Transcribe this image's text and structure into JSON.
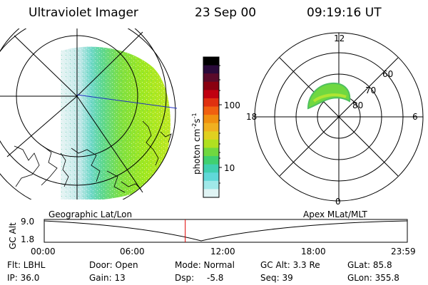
{
  "header": {
    "title": "Ultraviolet Imager",
    "date": "23 Sep 00",
    "time": "09:19:16 UT"
  },
  "colorbar": {
    "label": "photon cm",
    "label_exp1": "-2",
    "label_s": "s",
    "label_exp2": "-1",
    "ticks": [
      "100",
      "10"
    ],
    "colors": [
      "#000000",
      "#2a0a3a",
      "#5a0a2a",
      "#8a0010",
      "#c00010",
      "#e03010",
      "#f06010",
      "#f09010",
      "#f0b020",
      "#e0d020",
      "#b0e020",
      "#70d840",
      "#40d070",
      "#40d0b0",
      "#60d8d8",
      "#a0e8e8",
      "#e0f4f4"
    ]
  },
  "polar": {
    "labels": [
      "12",
      "18",
      "6",
      "0",
      "60",
      "70",
      "80"
    ]
  },
  "left_panel": {
    "caption": "Geographic Lat/Lon"
  },
  "right_panel": {
    "caption": "Apex MLat/MLT"
  },
  "altitude_plot": {
    "ylabel": "GC Alt",
    "y_ticks": [
      "9.0",
      "1.8"
    ],
    "x_ticks": [
      "00:00",
      "06:00",
      "12:00",
      "18:00",
      "23:59"
    ],
    "current_time_hours": 9.32
  },
  "info": {
    "flt": "Flt: LBHL",
    "ip": "IP: 36.0",
    "door": "Door: Open",
    "gain": "Gain: 13",
    "mode": "Mode: Normal",
    "dsp_label": "Dsp:",
    "dsp_value": "-5.8",
    "gc_alt": "GC Alt: 3.3 Re",
    "seq": "Seq: 39",
    "glat": "GLat: 85.8",
    "glon": "GLon: 355.8"
  }
}
